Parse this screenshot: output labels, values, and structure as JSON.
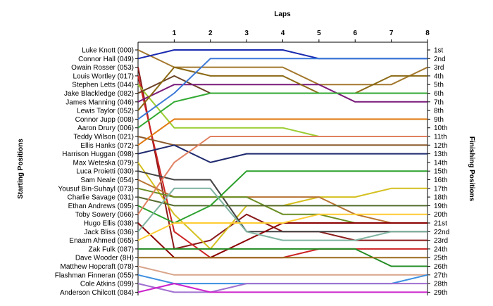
{
  "chart_data": {
    "type": "line",
    "title": "Laps",
    "ylabel_left": "Starting Positions",
    "ylabel_right": "Finishing Positions",
    "x": [
      0,
      1,
      2,
      3,
      4,
      5,
      6,
      7,
      8
    ],
    "x_tick_labels": [
      "1",
      "2",
      "3",
      "4",
      "5",
      "6",
      "7",
      "8"
    ],
    "starting_labels": [
      "Luke Knott (000)",
      "Connor Hall (049)",
      "Owain Rosser (053)",
      "Louis Wortley (017)",
      "Stephen Letts (044)",
      "Jake Blackledge (082)",
      "James Manning (046)",
      "Lewis Taylor (052)",
      "Connor Jupp (008)",
      "Aaron Drury (006)",
      "Teddy Wilson (021)",
      "Ellis Hanks (072)",
      "Harrison Huggan (098)",
      "Max Weteska (079)",
      "Luca Proietti (030)",
      "Sam Neale (054)",
      "Yousuf Bin-Suhayl (073)",
      "Charlie Savage (031)",
      "Ethan Andrews (095)",
      "Toby Sowery (066)",
      "Hugo Ellis (038)",
      "Jack Bliss (036)",
      "Enaam Ahmed (065)",
      "Zak Fulk (087)",
      "Dave Wooder (8H)",
      "Matthew Hopcraft (078)",
      "Flashman Finneran (055)",
      "Cole Atkins (099)",
      "Anderson Chilcott (084)"
    ],
    "finishing_labels": [
      "1st",
      "2nd",
      "3rd",
      "4th",
      "5th",
      "6th",
      "7th",
      "8th",
      "9th",
      "10th",
      "11th",
      "12th",
      "13th",
      "14th",
      "15th",
      "16th",
      "17th",
      "18th",
      "19th",
      "20th",
      "21st",
      "22nd",
      "23rd",
      "24th",
      "25th",
      "26th",
      "27th",
      "28th",
      "29th"
    ],
    "y_range": [
      1,
      29
    ],
    "grid": false,
    "series": [
      {
        "positions": [
          1,
          3,
          3,
          3,
          3,
          5,
          5,
          5,
          3
        ],
        "color": "#a3782e"
      },
      {
        "positions": [
          2,
          1,
          1,
          1,
          1,
          2,
          2,
          2,
          2
        ],
        "color": "#1a2ab0"
      },
      {
        "positions": [
          3,
          24,
          23,
          20,
          22,
          22,
          23,
          23,
          23
        ],
        "color": "#8b1a1a"
      },
      {
        "positions": [
          4,
          22,
          25,
          25,
          25,
          24,
          24,
          24,
          24
        ],
        "color": "#cc2222"
      },
      {
        "positions": [
          5,
          10,
          10,
          10,
          10,
          11,
          11,
          11,
          11
        ],
        "color": "#9acd32"
      },
      {
        "positions": [
          6,
          4,
          6,
          6,
          6,
          6,
          6,
          6,
          6
        ],
        "color": "#6b4226"
      },
      {
        "positions": [
          7,
          5,
          5,
          5,
          5,
          5,
          7,
          7,
          7
        ],
        "color": "#7a1a7a"
      },
      {
        "positions": [
          8,
          3,
          4,
          4,
          4,
          6,
          6,
          4,
          4
        ],
        "color": "#8b6914"
      },
      {
        "positions": [
          9,
          6,
          2,
          2,
          2,
          2,
          2,
          2,
          2
        ],
        "color": "#3a78d8"
      },
      {
        "positions": [
          10,
          7,
          6,
          6,
          6,
          6,
          6,
          6,
          6
        ],
        "color": "#33aa33"
      },
      {
        "positions": [
          11,
          12,
          12,
          12,
          12,
          12,
          12,
          12,
          12
        ],
        "color": "#8b5a2b"
      },
      {
        "positions": [
          12,
          9,
          9,
          9,
          9,
          9,
          9,
          9,
          9
        ],
        "color": "#e07a10"
      },
      {
        "positions": [
          13,
          12,
          14,
          13,
          13,
          13,
          13,
          13,
          13
        ],
        "color": "#1f2a6e"
      },
      {
        "positions": [
          14,
          20,
          24,
          19,
          19,
          18,
          18,
          17,
          17
        ],
        "color": "#d4c020"
      },
      {
        "positions": [
          15,
          16,
          16,
          22,
          22,
          22,
          22,
          22,
          22
        ],
        "color": "#444444"
      },
      {
        "positions": [
          16,
          18,
          18,
          18,
          18,
          18,
          20,
          21,
          21
        ],
        "color": "#b87333"
      },
      {
        "positions": [
          17,
          18,
          18,
          18,
          20,
          20,
          21,
          21,
          21
        ],
        "color": "#6b8e23"
      },
      {
        "positions": [
          18,
          19,
          19,
          19,
          19,
          19,
          19,
          19,
          19
        ],
        "color": "#556b2f"
      },
      {
        "positions": [
          19,
          21,
          19,
          15,
          15,
          15,
          15,
          15,
          15
        ],
        "color": "#2ca02c"
      },
      {
        "positions": [
          20,
          14,
          11,
          11,
          11,
          11,
          11,
          11,
          11
        ],
        "color": "#e08060"
      },
      {
        "positions": [
          21,
          25,
          25,
          23,
          21,
          21,
          21,
          21,
          21
        ],
        "color": "#8b0000"
      },
      {
        "positions": [
          22,
          17,
          17,
          22,
          23,
          23,
          23,
          22,
          22
        ],
        "color": "#7fb3a0"
      },
      {
        "positions": [
          23,
          21,
          21,
          21,
          21,
          20,
          20,
          20,
          20
        ],
        "color": "#ffcc33"
      },
      {
        "positions": [
          24,
          24,
          24,
          24,
          24,
          24,
          24,
          26,
          26
        ],
        "color": "#228b22"
      },
      {
        "positions": [
          25,
          25,
          25,
          25,
          25,
          25,
          25,
          25,
          25
        ],
        "color": "#9a6c1e"
      },
      {
        "positions": [
          26,
          27,
          27,
          27,
          27,
          27,
          27,
          27,
          27
        ],
        "color": "#d9a48a"
      },
      {
        "positions": [
          27,
          28,
          28,
          28,
          28,
          28,
          28,
          28,
          27
        ],
        "color": "#3d8fe0"
      },
      {
        "positions": [
          28,
          29,
          29,
          28,
          28,
          28,
          28,
          28,
          28
        ],
        "color": "#a070d0"
      },
      {
        "positions": [
          29,
          28,
          29,
          29,
          29,
          29,
          29,
          29,
          29
        ],
        "color": "#cc22cc"
      }
    ]
  }
}
